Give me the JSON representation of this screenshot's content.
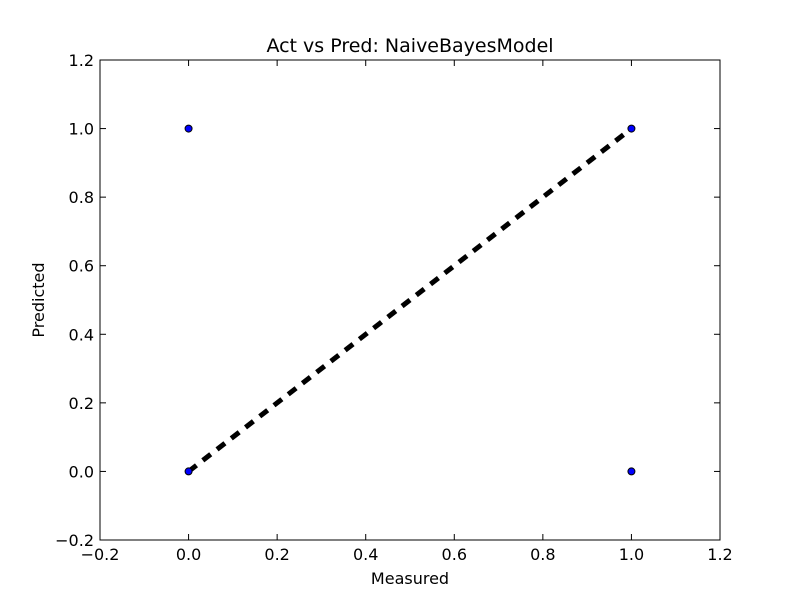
{
  "chart_data": {
    "type": "scatter",
    "title": "Act vs Pred: NaiveBayesModel",
    "xlabel": "Measured",
    "ylabel": "Predicted",
    "xlim": [
      -0.2,
      1.2
    ],
    "ylim": [
      -0.2,
      1.2
    ],
    "x_ticks": [
      "−0.2",
      "0.0",
      "0.2",
      "0.4",
      "0.6",
      "0.8",
      "1.0",
      "1.2"
    ],
    "y_ticks": [
      "−0.2",
      "0.0",
      "0.2",
      "0.4",
      "0.6",
      "0.8",
      "1.0",
      "1.2"
    ],
    "grid": false,
    "series": [
      {
        "points": [
          {
            "x": 0.0,
            "y": 1.0
          },
          {
            "x": 0.0,
            "y": 0.0
          },
          {
            "x": 1.0,
            "y": 1.0
          },
          {
            "x": 1.0,
            "y": 0.0
          }
        ],
        "color": "#0000ff"
      }
    ],
    "reference_line": {
      "from": [
        0.0,
        0.0
      ],
      "to": [
        1.0,
        1.0
      ],
      "style": "dashed",
      "color": "#000000"
    }
  }
}
